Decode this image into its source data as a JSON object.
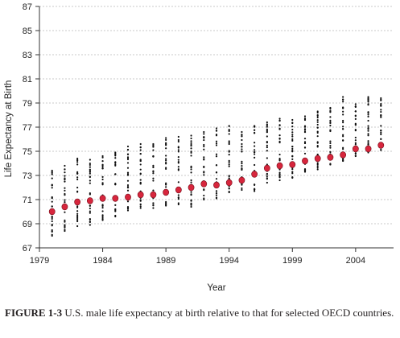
{
  "chart_data": {
    "type": "scatter",
    "xlabel": "Year",
    "ylabel": "Life Expectancy at Birth",
    "xlim": [
      1979,
      2007
    ],
    "ylim": [
      67,
      87
    ],
    "xticks": [
      1979,
      1984,
      1989,
      1994,
      1999,
      2004
    ],
    "yticks": [
      67,
      69,
      71,
      73,
      75,
      77,
      79,
      81,
      83,
      85,
      87
    ],
    "grid": true,
    "legend": "none",
    "colors": {
      "us": "#d7263d",
      "oecd": "#111111",
      "grid": "#c8c8c8"
    },
    "series": [
      {
        "key": "us",
        "x": [
          1980,
          1981,
          1982,
          1983,
          1984,
          1985,
          1986,
          1987,
          1988,
          1989,
          1990,
          1991,
          1992,
          1993,
          1994,
          1995,
          1996,
          1997,
          1998,
          1999,
          2000,
          2001,
          2002,
          2003,
          2004,
          2005,
          2006
        ],
        "values": [
          70.0,
          70.4,
          70.8,
          70.9,
          71.1,
          71.1,
          71.2,
          71.4,
          71.4,
          71.6,
          71.8,
          72.0,
          72.3,
          72.2,
          72.4,
          72.6,
          73.1,
          73.6,
          73.8,
          73.9,
          74.2,
          74.4,
          74.5,
          74.7,
          75.2,
          75.2,
          75.5
        ]
      },
      {
        "key": "oecd",
        "x": [
          1980,
          1981,
          1982,
          1983,
          1984,
          1985,
          1986,
          1987,
          1988,
          1989,
          1990,
          1991,
          1992,
          1993,
          1994,
          1995,
          1996,
          1997,
          1998,
          1999,
          2000,
          2001,
          2002,
          2003,
          2004,
          2005,
          2006
        ],
        "ranges": [
          [
            68.0,
            73.4
          ],
          [
            68.4,
            73.8
          ],
          [
            68.8,
            74.4
          ],
          [
            68.9,
            74.3
          ],
          [
            69.3,
            74.6
          ],
          [
            69.6,
            74.9
          ],
          [
            70.1,
            75.4
          ],
          [
            70.3,
            75.6
          ],
          [
            70.3,
            75.6
          ],
          [
            70.5,
            76.1
          ],
          [
            70.6,
            76.2
          ],
          [
            70.4,
            76.3
          ],
          [
            71.0,
            76.6
          ],
          [
            71.1,
            76.9
          ],
          [
            71.6,
            77.1
          ],
          [
            71.8,
            76.6
          ],
          [
            71.7,
            77.1
          ],
          [
            72.4,
            77.4
          ],
          [
            72.6,
            77.7
          ],
          [
            72.8,
            77.6
          ],
          [
            73.3,
            77.9
          ],
          [
            73.5,
            78.3
          ],
          [
            73.9,
            78.6
          ],
          [
            74.2,
            79.5
          ],
          [
            74.6,
            78.9
          ],
          [
            74.9,
            79.5
          ],
          [
            75.1,
            79.4
          ]
        ],
        "points_per_year": 26
      }
    ]
  },
  "caption": {
    "label": "FIGURE 1-3",
    "text": "U.S. male life expectancy at birth relative to that for selected OECD countries."
  }
}
